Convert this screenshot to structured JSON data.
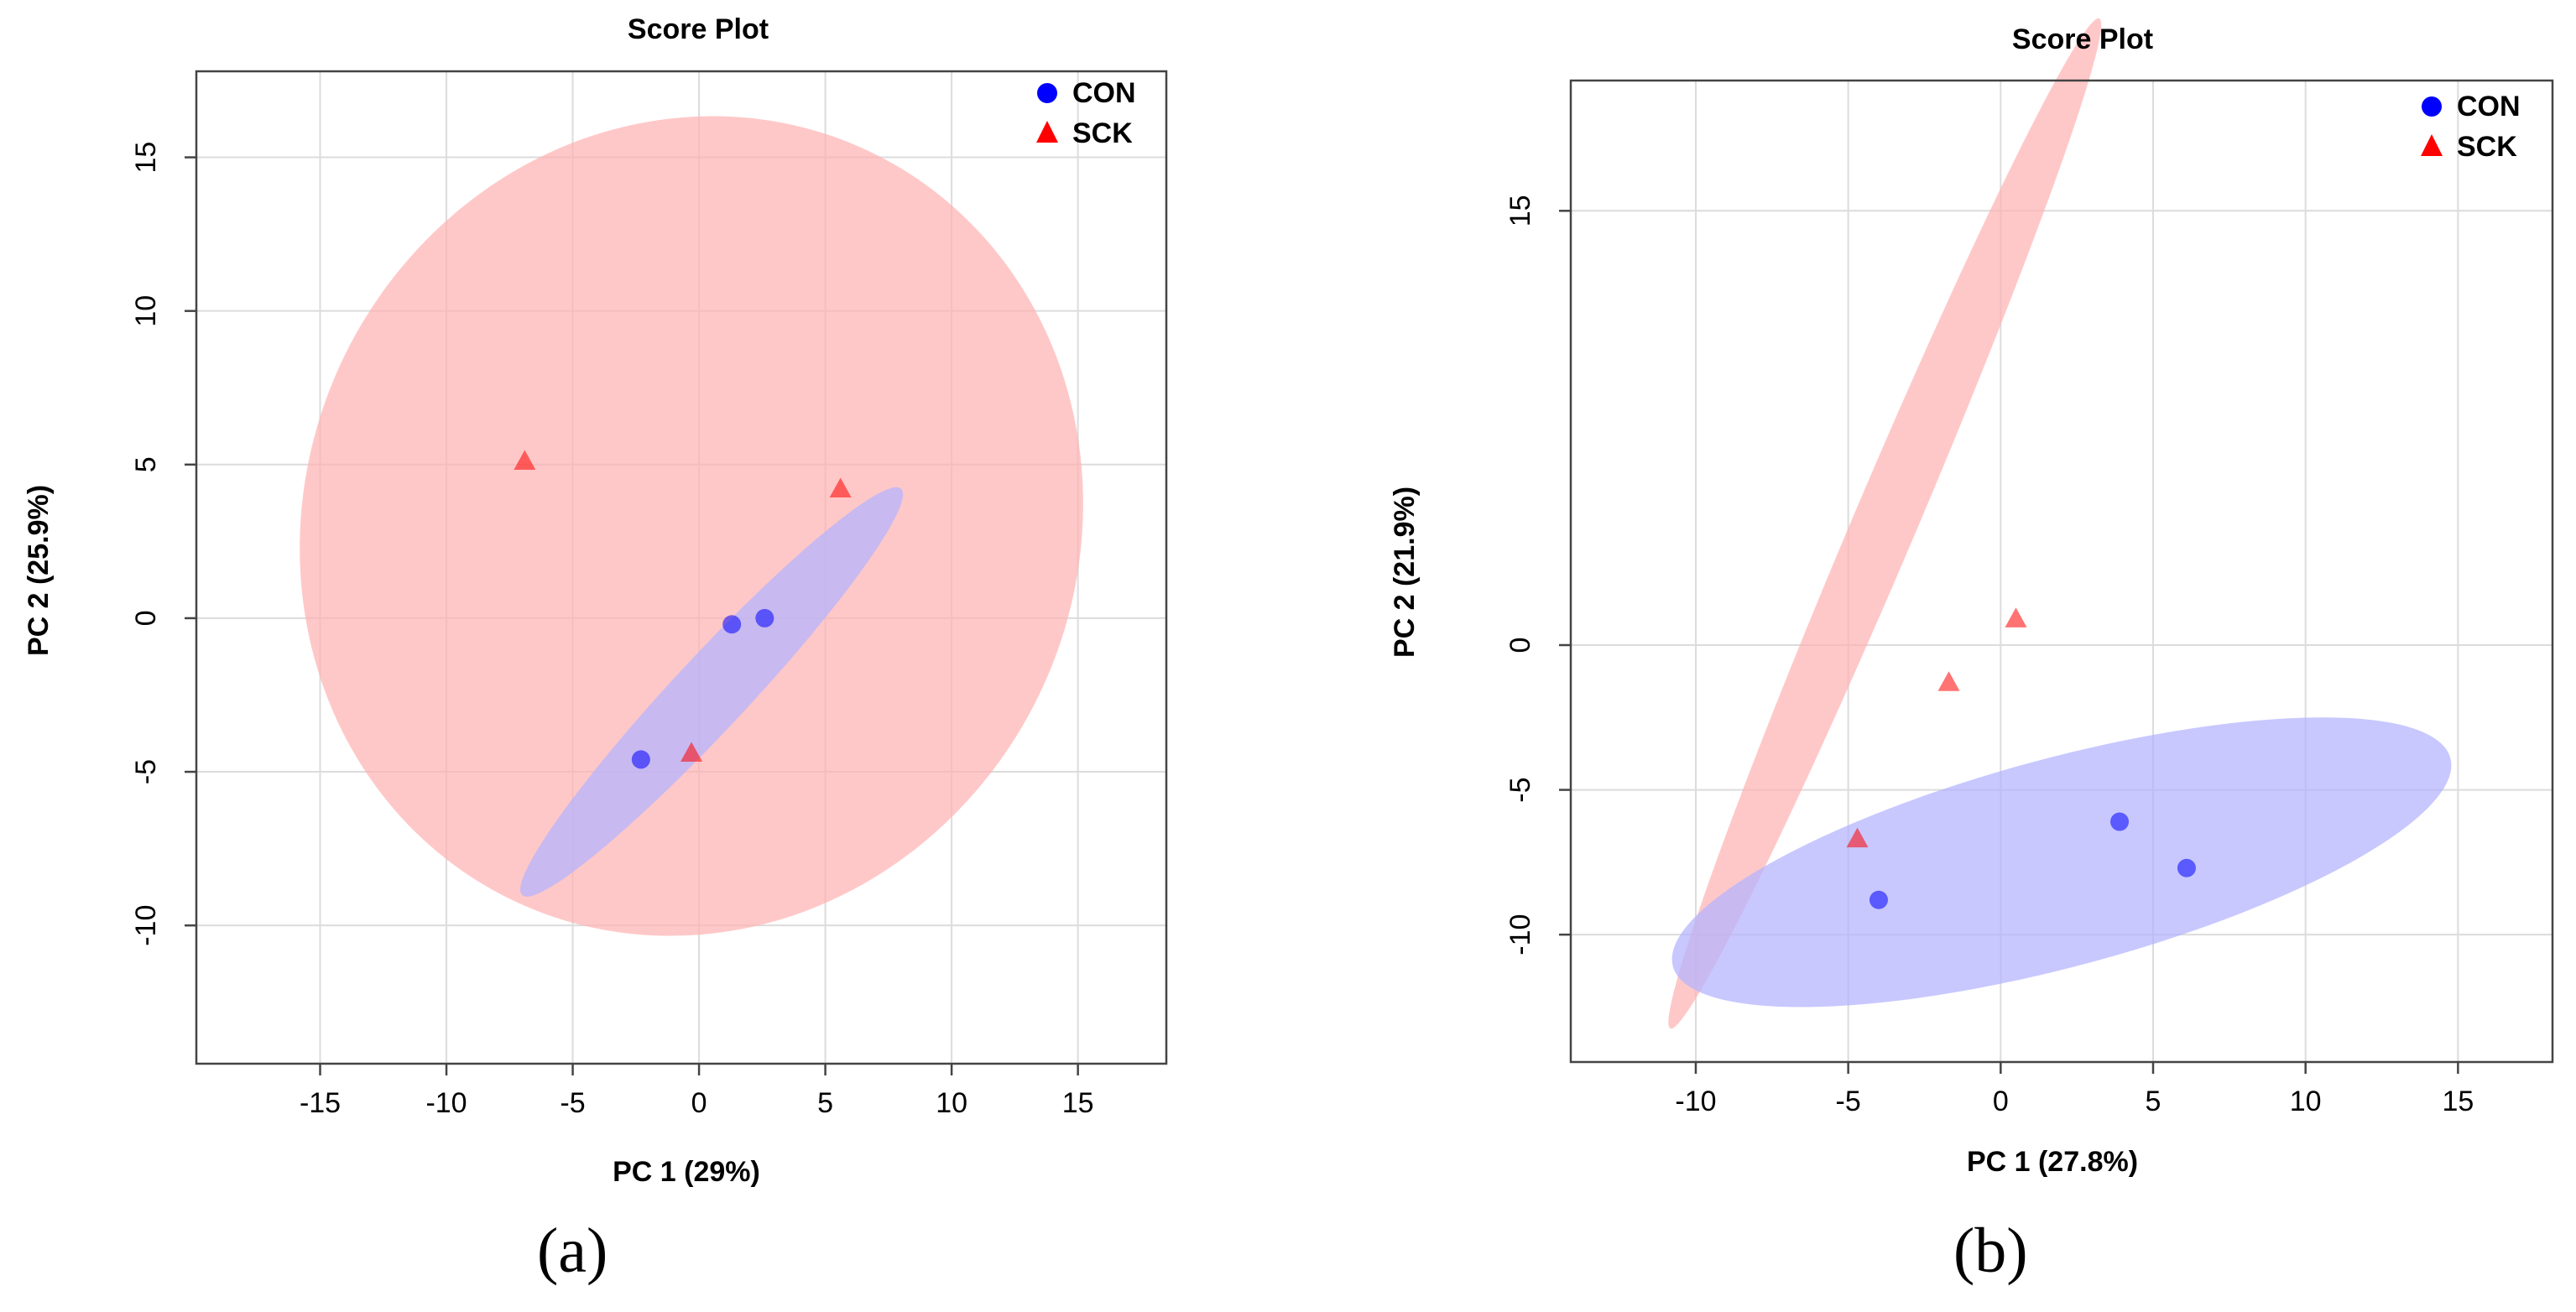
{
  "panels": [
    {
      "caption": "(a)",
      "chart_data": {
        "type": "scatter",
        "title": "Score Plot",
        "xlabel": "PC 1 (29%)",
        "ylabel": "PC 2 (25.9%)",
        "xlim": [
          -19.9,
          18.5
        ],
        "ylim": [
          -14.5,
          17.8
        ],
        "xticks": [
          -15,
          -10,
          -5,
          0,
          5,
          10,
          15
        ],
        "yticks": [
          -10,
          -5,
          0,
          5,
          10,
          15
        ],
        "grid": true,
        "legend_position": "top-right",
        "series": [
          {
            "name": "CON",
            "marker": "circle",
            "color": "#0000ff",
            "points": [
              [
                -2.3,
                -4.6
              ],
              [
                1.3,
                -0.2
              ],
              [
                2.6,
                0.0
              ]
            ]
          },
          {
            "name": "SCK",
            "marker": "triangle",
            "color": "#ff0000",
            "points": [
              [
                -6.9,
                5.1
              ],
              [
                5.6,
                4.2
              ],
              [
                -0.3,
                -4.4
              ]
            ]
          }
        ],
        "ellipses": [
          {
            "group": "SCK",
            "color": "#ffb3b3",
            "cx": -0.3,
            "cy": 3.0,
            "rx": 15.3,
            "ry": 13.5,
            "angle": -25
          },
          {
            "group": "CON",
            "color": "#b3b3ff",
            "cx": 0.5,
            "cy": -2.4,
            "rx": 11.0,
            "ry": 1.2,
            "angle": 47
          }
        ]
      }
    },
    {
      "caption": "(b)",
      "chart_data": {
        "type": "scatter",
        "title": "Score Plot",
        "xlabel": "PC 1 (27.8%)",
        "ylabel": "PC 2 (21.9%)",
        "xlim": [
          -14.1,
          18.1
        ],
        "ylim": [
          -14.4,
          19.5
        ],
        "xticks": [
          -10,
          -5,
          0,
          5,
          10,
          15
        ],
        "yticks": [
          -10,
          -5,
          0,
          15
        ],
        "grid": true,
        "legend_position": "top-right",
        "series": [
          {
            "name": "CON",
            "marker": "circle",
            "color": "#0000ff",
            "points": [
              [
                -4.0,
                -8.8
              ],
              [
                3.9,
                -6.1
              ],
              [
                6.1,
                -7.7
              ]
            ]
          },
          {
            "name": "SCK",
            "marker": "triangle",
            "color": "#ff0000",
            "points": [
              [
                0.5,
                0.9
              ],
              [
                -1.7,
                -1.3
              ],
              [
                -4.7,
                -6.7
              ]
            ]
          }
        ],
        "ellipses": [
          {
            "group": "SCK",
            "color": "#ffb3b3",
            "cx": -3.8,
            "cy": 4.2,
            "rx": 18.0,
            "ry": 1.1,
            "angle": 67
          },
          {
            "group": "CON",
            "color": "#b3b3ff",
            "cx": 2.0,
            "cy": -7.5,
            "rx": 13.2,
            "ry": 3.6,
            "angle": 15
          }
        ]
      }
    }
  ]
}
